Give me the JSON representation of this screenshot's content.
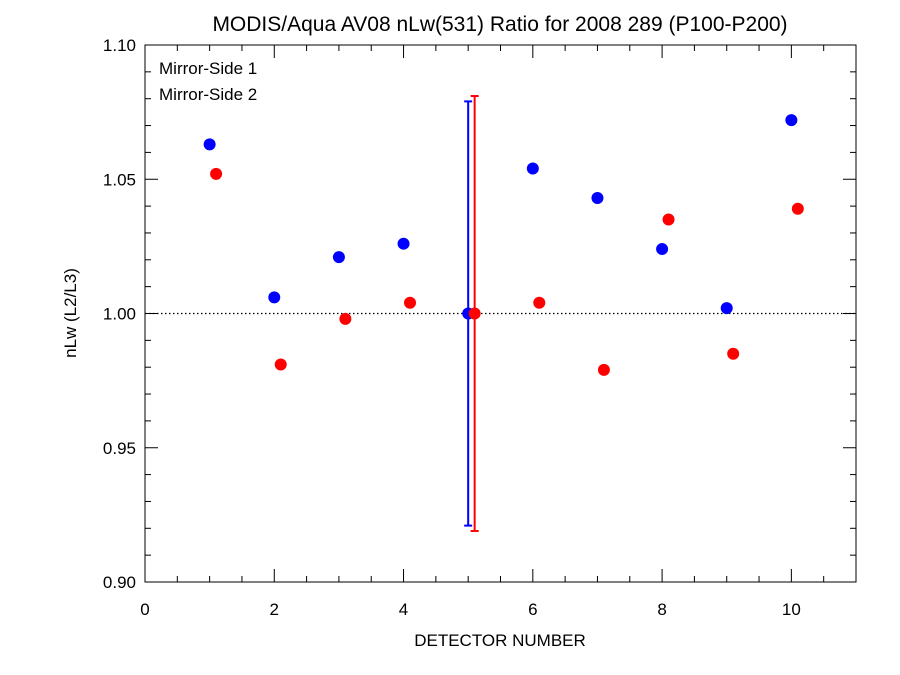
{
  "chart_data": {
    "type": "scatter",
    "title": "MODIS/Aqua AV08 nLw(531) Ratio for 2008 289 (P100-P200)",
    "xlabel": "DETECTOR NUMBER",
    "ylabel": "nLw (L2/L3)",
    "xlim": [
      0,
      11
    ],
    "ylim": [
      0.9,
      1.1
    ],
    "xticks": [
      "0",
      "2",
      "4",
      "6",
      "8",
      "10"
    ],
    "yticks": [
      "0.90",
      "0.95",
      "1.00",
      "1.05",
      "1.10"
    ],
    "reference_line": 1.0,
    "legend_position": "top-left",
    "series": [
      {
        "name": "Mirror-Side 1",
        "color": "#0000ff",
        "x": [
          1,
          2,
          3,
          4,
          5,
          6,
          7,
          8,
          9,
          10
        ],
        "y": [
          1.063,
          1.006,
          1.021,
          1.026,
          1.0,
          1.054,
          1.043,
          1.024,
          1.002,
          1.072
        ],
        "error_bar": {
          "x": 5,
          "low": 0.921,
          "high": 1.079
        }
      },
      {
        "name": "Mirror-Side 2",
        "color": "#ff0000",
        "x": [
          1.1,
          2.1,
          3.1,
          4.1,
          5.1,
          6.1,
          7.1,
          8.1,
          9.1,
          10.1
        ],
        "y": [
          1.052,
          0.981,
          0.998,
          1.004,
          1.0,
          1.004,
          0.979,
          1.035,
          0.985,
          1.039
        ],
        "error_bar": {
          "x": 5.1,
          "low": 0.919,
          "high": 1.081
        }
      }
    ]
  }
}
